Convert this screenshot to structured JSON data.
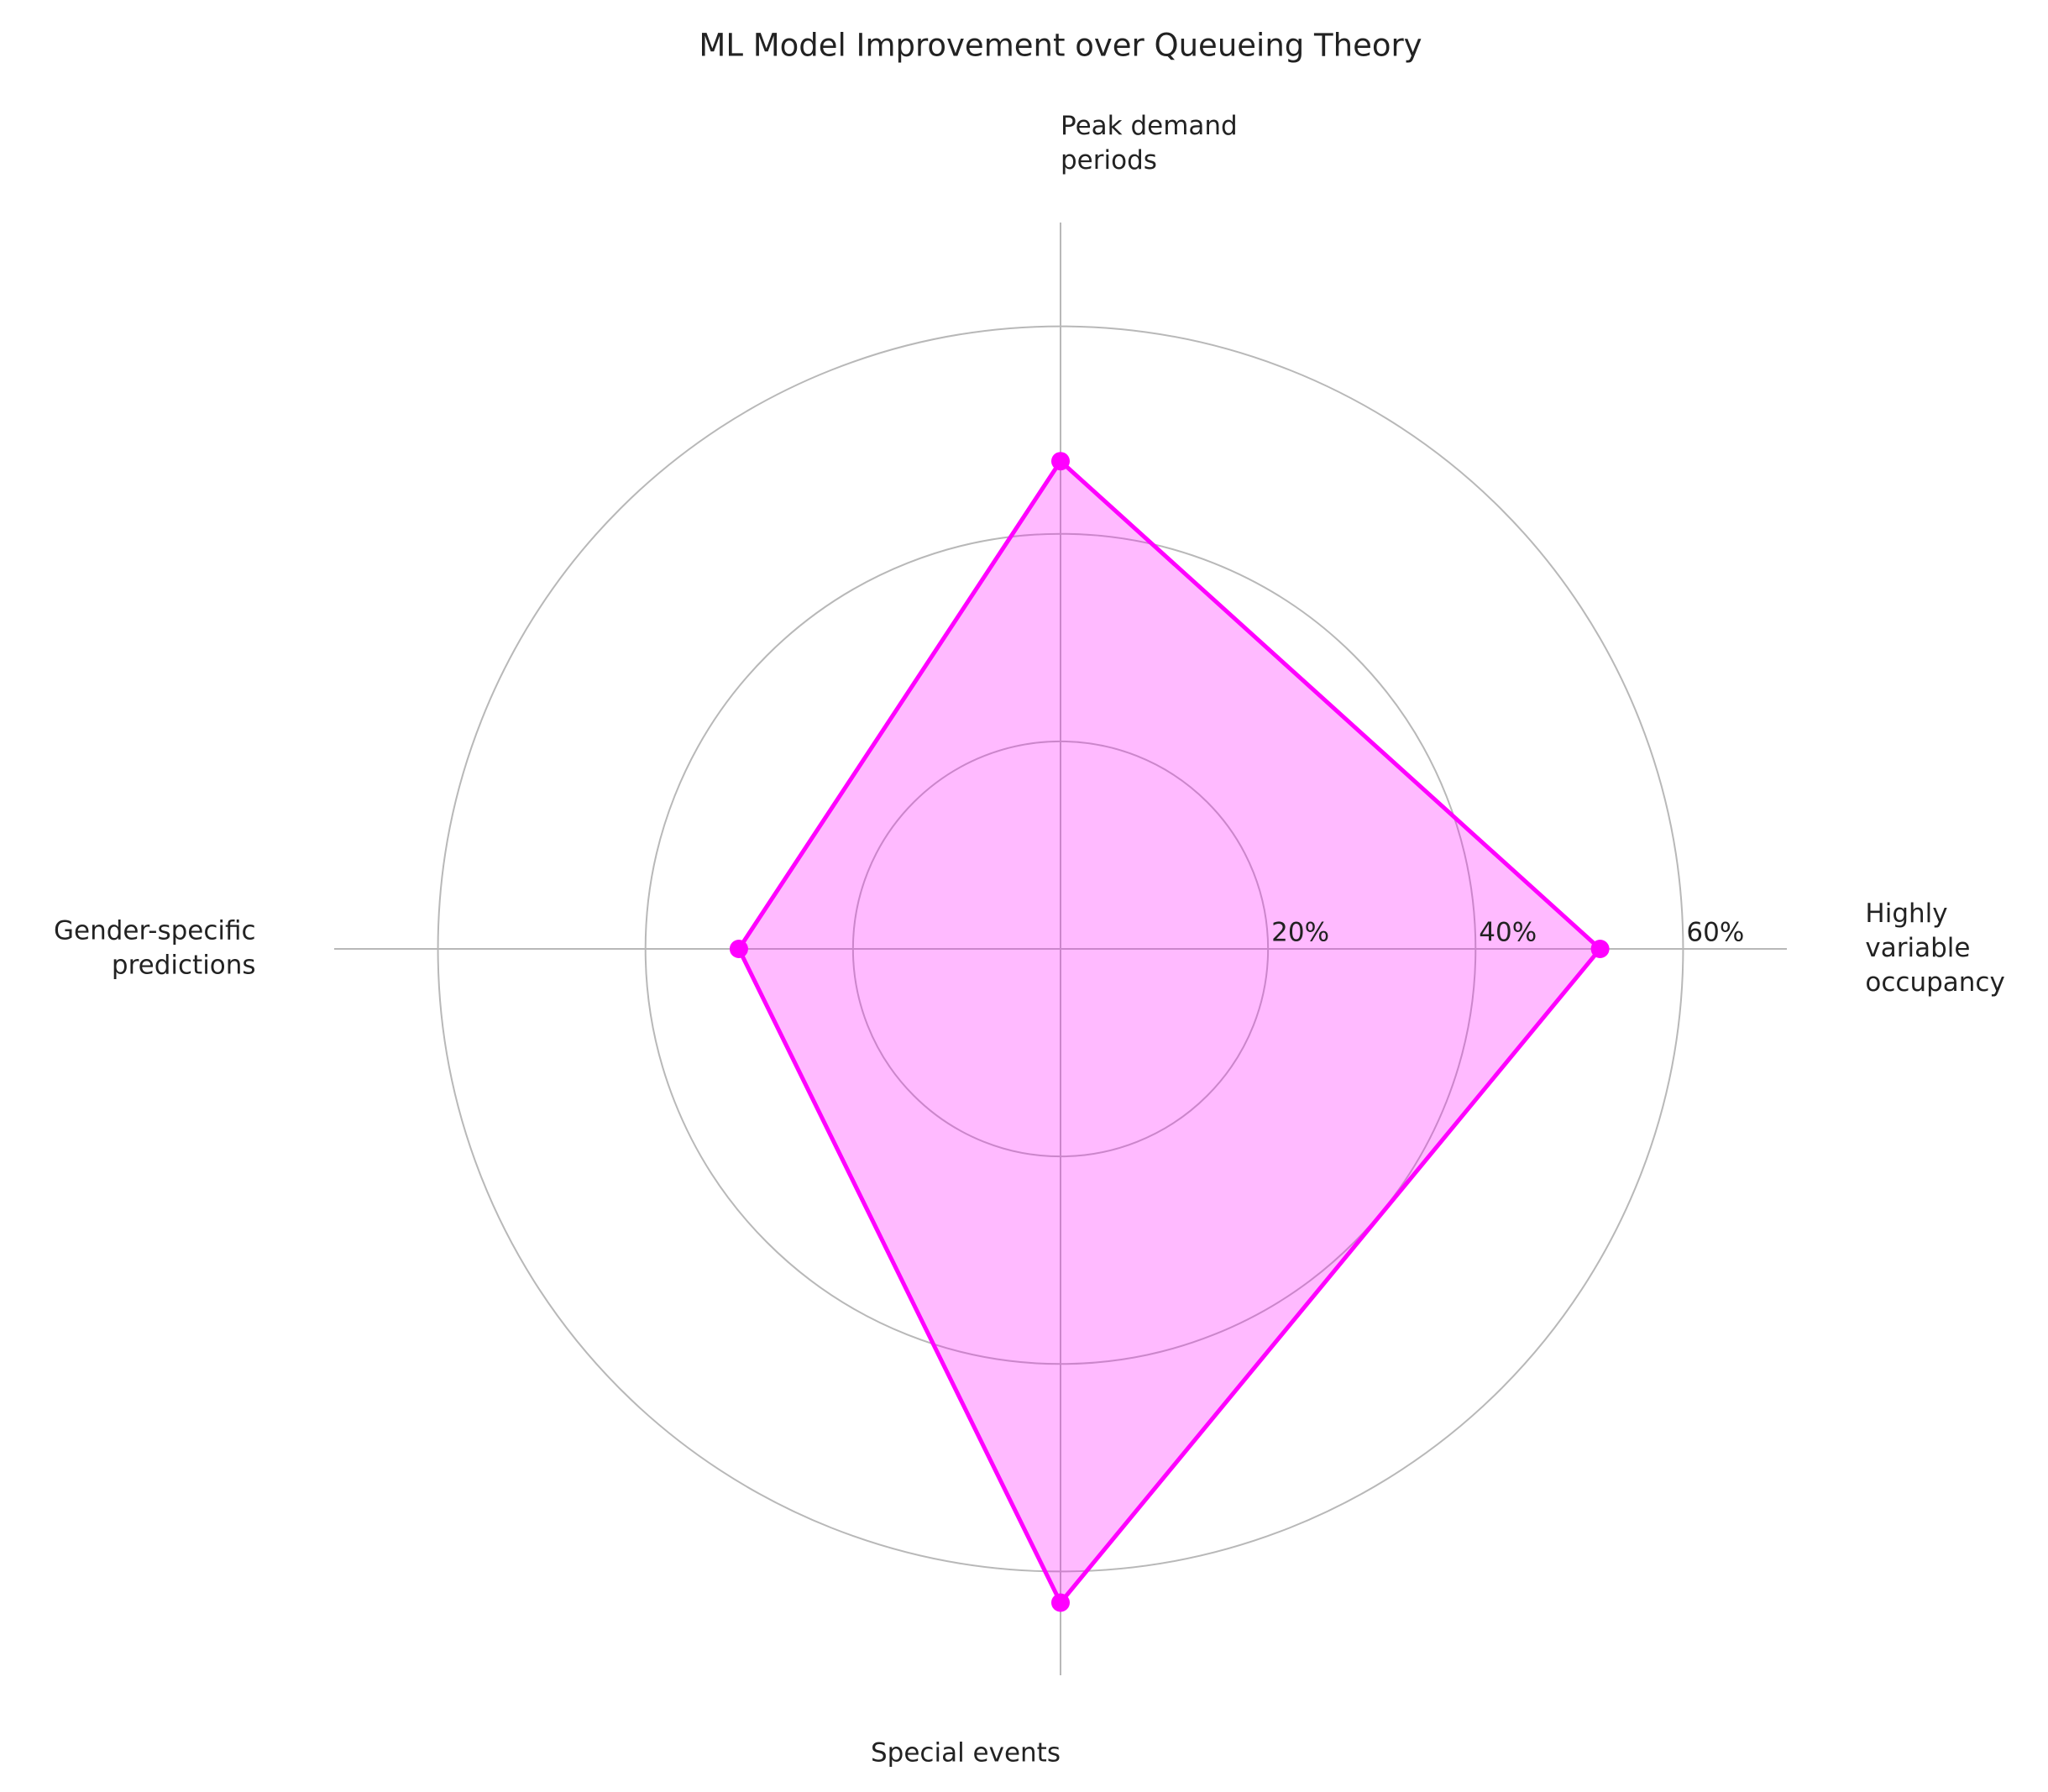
{
  "chart_data": {
    "type": "radar",
    "title": "ML Model Improvement over Queueing Theory",
    "categories": [
      "Peak demand\nperiods",
      "Highly\nvariable\noccupancy",
      "Special events",
      "Gender-specific\npredictions"
    ],
    "values": [
      47,
      52,
      63,
      31
    ],
    "color": "#ff00ff",
    "ylim": [
      0,
      70
    ],
    "yticks": [
      {
        "value": 20,
        "label": "20%"
      },
      {
        "value": 40,
        "label": "40%"
      },
      {
        "value": 60,
        "label": "60%"
      }
    ],
    "grid": true
  }
}
